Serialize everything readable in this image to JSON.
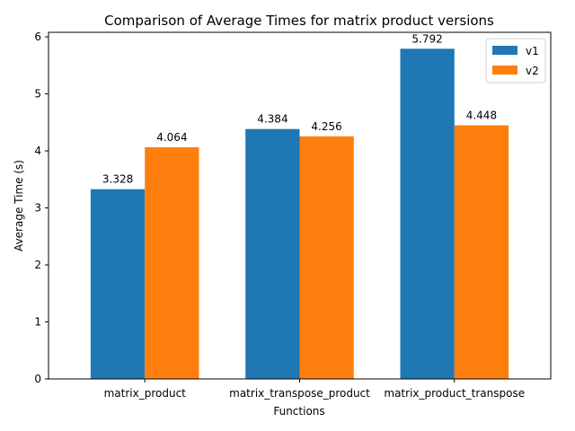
{
  "chart_data": {
    "type": "bar",
    "title": "Comparison of Average Times for matrix product versions",
    "xlabel": "Functions",
    "ylabel": "Average Time (s)",
    "categories": [
      "matrix_product",
      "matrix_transpose_product",
      "matrix_product_transpose"
    ],
    "series": [
      {
        "name": "v1",
        "color": "#1f77b4",
        "values": [
          3.328,
          4.384,
          5.792
        ],
        "labels": [
          "3.328",
          "4.384",
          "5.792"
        ]
      },
      {
        "name": "v2",
        "color": "#ff7f0e",
        "values": [
          4.064,
          4.256,
          4.448
        ],
        "labels": [
          "4.064",
          "4.256",
          "4.448"
        ]
      }
    ],
    "ylim": [
      0,
      6.08
    ],
    "yticks": [
      0,
      1,
      2,
      3,
      4,
      5,
      6
    ],
    "ytick_labels": [
      "0",
      "1",
      "2",
      "3",
      "4",
      "5",
      "6"
    ],
    "grid": false,
    "legend_position": "top-right"
  }
}
